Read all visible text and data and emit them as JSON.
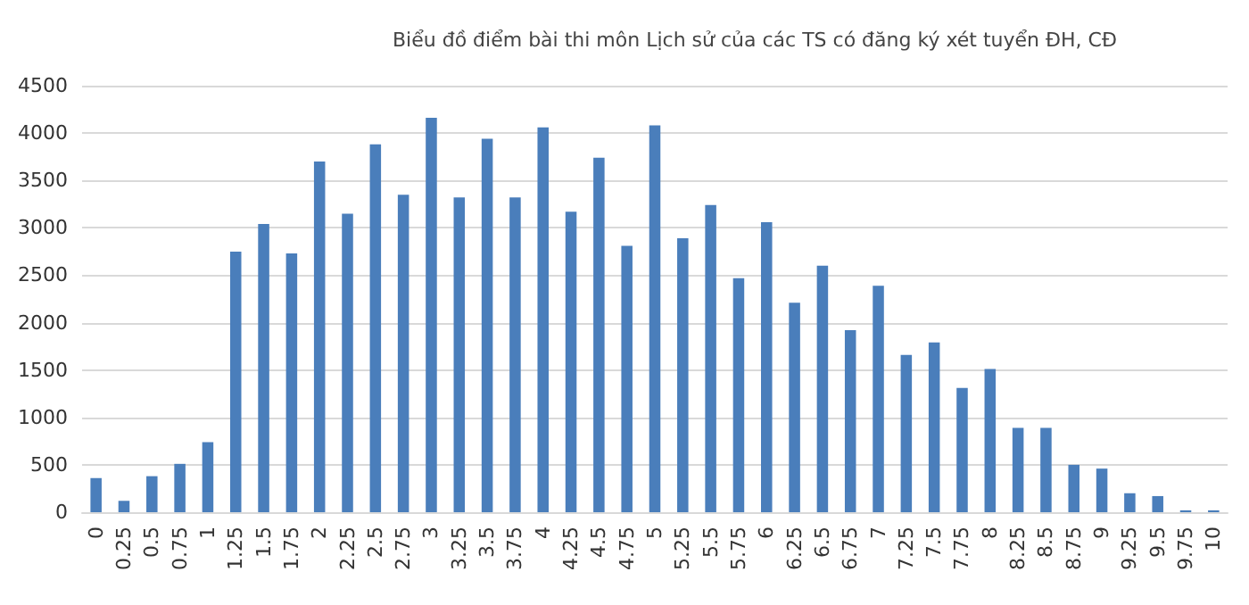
{
  "chart_data": {
    "type": "bar",
    "title": "Biểu đồ điểm bài thi môn Lịch sử của các TS có đăng ký xét tuyển ĐH, CĐ",
    "categories": [
      "0",
      "0.25",
      "0.5",
      "0.75",
      "1",
      "1.25",
      "1.5",
      "1.75",
      "2",
      "2.25",
      "2.5",
      "2.75",
      "3",
      "3.25",
      "3.5",
      "3.75",
      "4",
      "4.25",
      "4.5",
      "4.75",
      "5",
      "5.25",
      "5.5",
      "5.75",
      "6",
      "6.25",
      "6.5",
      "6.75",
      "7",
      "7.25",
      "7.5",
      "7.75",
      "8",
      "8.25",
      "8.5",
      "8.75",
      "9",
      "9.25",
      "9.5",
      "9.75",
      "10"
    ],
    "values": [
      360,
      120,
      380,
      510,
      740,
      2750,
      3040,
      2730,
      3700,
      3150,
      3880,
      3350,
      4160,
      3320,
      3940,
      3320,
      4060,
      3170,
      3740,
      2810,
      4080,
      2890,
      3240,
      2470,
      3060,
      2210,
      2600,
      1920,
      2390,
      1660,
      1790,
      1310,
      1510,
      890,
      890,
      500,
      460,
      200,
      170,
      20,
      20
    ],
    "color": "#4a7ebb",
    "ylim": [
      0,
      4500
    ],
    "yticks": [
      0,
      500,
      1000,
      1500,
      2000,
      2500,
      3000,
      3500,
      4000,
      4500
    ],
    "grid": "y"
  }
}
